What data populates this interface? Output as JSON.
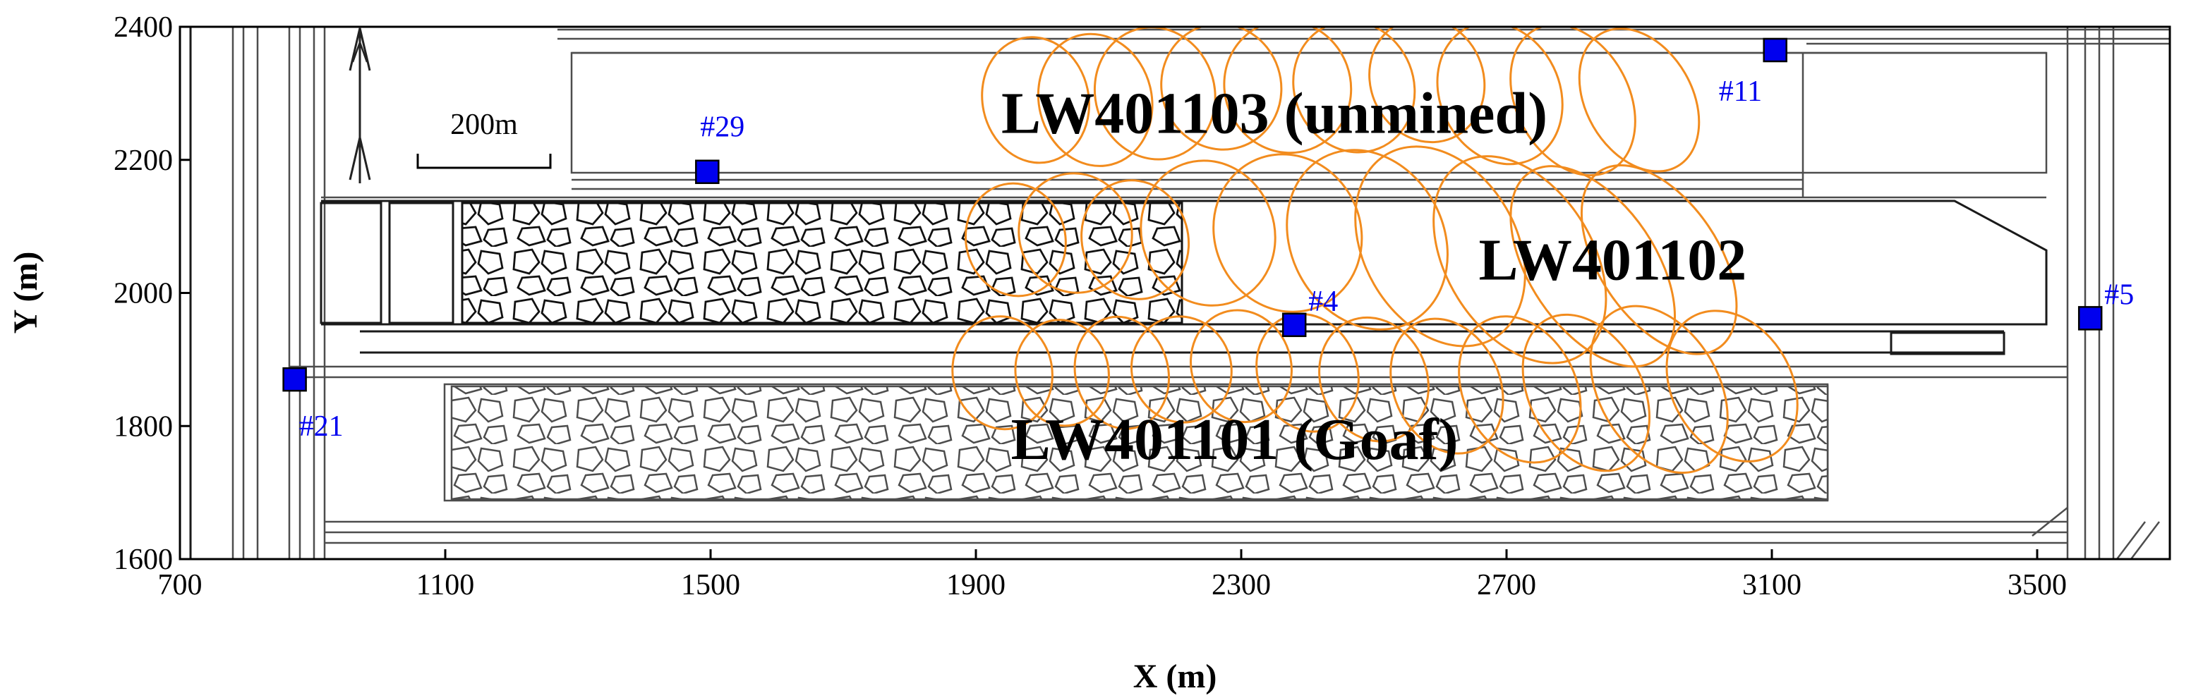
{
  "axes": {
    "xlabel": "X (m)",
    "ylabel": "Y (m)",
    "xlim": [
      700,
      3700
    ],
    "ylim": [
      1600,
      2400
    ],
    "xticks": [
      700,
      1100,
      1500,
      1900,
      2300,
      2700,
      3100,
      3500
    ],
    "yticks": [
      1600,
      1800,
      2000,
      2200,
      2400
    ]
  },
  "scale_bar": {
    "label": "200m",
    "length_m": 200
  },
  "panels": [
    {
      "id": "lw401103",
      "label": "LW401103 (unmined)",
      "x": 2350,
      "y": 2270
    },
    {
      "id": "lw401102",
      "label": "LW401102",
      "x": 2860,
      "y": 2050
    },
    {
      "id": "lw401101",
      "label": "LW401101 (Goaf)",
      "x": 2290,
      "y": 1780
    }
  ],
  "stations": [
    {
      "id": "#29",
      "x": 1495,
      "y": 2182
    },
    {
      "id": "#11",
      "x": 3105,
      "y": 2365
    },
    {
      "id": "#4",
      "x": 2380,
      "y": 1952
    },
    {
      "id": "#5",
      "x": 3580,
      "y": 1962
    },
    {
      "id": "#21",
      "x": 873,
      "y": 1870
    }
  ],
  "colors": {
    "station": "#0000ee",
    "station_label": "#0000ee",
    "ellipse": "#f28c1e",
    "road": "#4d4d4d"
  },
  "ellipses": [
    {
      "cx": 1990,
      "cy": 2290,
      "rx": 80,
      "ry": 95,
      "rot": -12
    },
    {
      "cx": 2080,
      "cy": 2290,
      "rx": 85,
      "ry": 100,
      "rot": -14
    },
    {
      "cx": 2170,
      "cy": 2300,
      "rx": 90,
      "ry": 100,
      "rot": -16
    },
    {
      "cx": 2270,
      "cy": 2310,
      "rx": 90,
      "ry": 95,
      "rot": -18
    },
    {
      "cx": 2370,
      "cy": 2310,
      "rx": 95,
      "ry": 100,
      "rot": -20
    },
    {
      "cx": 2470,
      "cy": 2310,
      "rx": 90,
      "ry": 100,
      "rot": -22
    },
    {
      "cx": 2580,
      "cy": 2320,
      "rx": 85,
      "ry": 95,
      "rot": -24
    },
    {
      "cx": 2690,
      "cy": 2300,
      "rx": 90,
      "ry": 110,
      "rot": -26
    },
    {
      "cx": 2800,
      "cy": 2290,
      "rx": 85,
      "ry": 120,
      "rot": -28
    },
    {
      "cx": 2900,
      "cy": 2290,
      "rx": 80,
      "ry": 115,
      "rot": -30
    },
    {
      "cx": 1960,
      "cy": 2080,
      "rx": 75,
      "ry": 85,
      "rot": -12
    },
    {
      "cx": 2050,
      "cy": 2090,
      "rx": 85,
      "ry": 90,
      "rot": -14
    },
    {
      "cx": 2140,
      "cy": 2080,
      "rx": 80,
      "ry": 90,
      "rot": -16
    },
    {
      "cx": 2250,
      "cy": 2090,
      "rx": 100,
      "ry": 110,
      "rot": -20
    },
    {
      "cx": 2370,
      "cy": 2090,
      "rx": 110,
      "ry": 120,
      "rot": -24
    },
    {
      "cx": 2490,
      "cy": 2080,
      "rx": 115,
      "ry": 140,
      "rot": -28
    },
    {
      "cx": 2600,
      "cy": 2070,
      "rx": 115,
      "ry": 160,
      "rot": -30
    },
    {
      "cx": 2720,
      "cy": 2050,
      "rx": 110,
      "ry": 170,
      "rot": -32
    },
    {
      "cx": 2830,
      "cy": 2040,
      "rx": 95,
      "ry": 170,
      "rot": -34
    },
    {
      "cx": 2930,
      "cy": 2050,
      "rx": 90,
      "ry": 160,
      "rot": -34
    },
    {
      "cx": 1940,
      "cy": 1880,
      "rx": 75,
      "ry": 85,
      "rot": -10
    },
    {
      "cx": 2030,
      "cy": 1880,
      "rx": 70,
      "ry": 80,
      "rot": -12
    },
    {
      "cx": 2120,
      "cy": 1880,
      "rx": 70,
      "ry": 85,
      "rot": -14
    },
    {
      "cx": 2210,
      "cy": 1885,
      "rx": 75,
      "ry": 80,
      "rot": -16
    },
    {
      "cx": 2300,
      "cy": 1890,
      "rx": 75,
      "ry": 85,
      "rot": -18
    },
    {
      "cx": 2400,
      "cy": 1880,
      "rx": 75,
      "ry": 90,
      "rot": -20
    },
    {
      "cx": 2500,
      "cy": 1870,
      "rx": 80,
      "ry": 95,
      "rot": -22
    },
    {
      "cx": 2610,
      "cy": 1860,
      "rx": 80,
      "ry": 105,
      "rot": -24
    },
    {
      "cx": 2720,
      "cy": 1855,
      "rx": 85,
      "ry": 115,
      "rot": -26
    },
    {
      "cx": 2820,
      "cy": 1850,
      "rx": 85,
      "ry": 125,
      "rot": -28
    },
    {
      "cx": 2930,
      "cy": 1855,
      "rx": 90,
      "ry": 135,
      "rot": -30
    },
    {
      "cx": 3040,
      "cy": 1860,
      "rx": 90,
      "ry": 120,
      "rot": -30
    }
  ]
}
